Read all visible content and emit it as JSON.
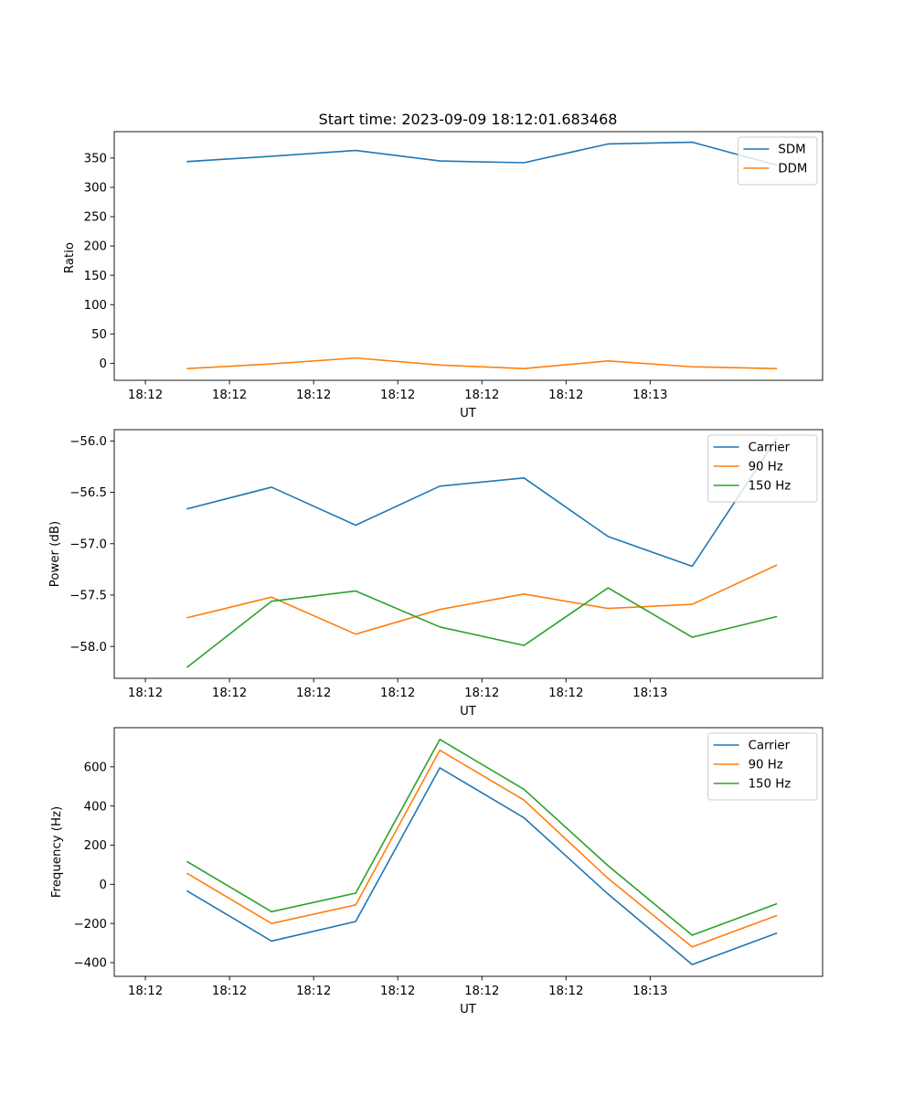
{
  "chart_data": [
    {
      "type": "line",
      "title": "Start time: 2023-09-09 18:12:01.683468",
      "xlabel": "UT",
      "ylabel": "Ratio",
      "x_tick_labels": [
        "18:12",
        "18:12",
        "18:12",
        "18:12",
        "18:12",
        "18:12",
        "18:13"
      ],
      "y_ticks": [
        0,
        50,
        100,
        150,
        200,
        250,
        300,
        350
      ],
      "ylim": [
        -29,
        395
      ],
      "xlim": [
        -0.37,
        8.05
      ],
      "x": [
        0.5,
        1.5,
        2.5,
        3.5,
        4.5,
        5.5,
        6.5,
        7.5
      ],
      "series": [
        {
          "name": "SDM",
          "color": "#1f77b4",
          "values": [
            344,
            353,
            363,
            345,
            342,
            374,
            377,
            338
          ]
        },
        {
          "name": "DDM",
          "color": "#ff7f0e",
          "values": [
            -9,
            -1,
            9,
            -3,
            -9,
            4,
            -6,
            -9
          ]
        }
      ],
      "legend": "top-right"
    },
    {
      "type": "line",
      "title": "",
      "xlabel": "UT",
      "ylabel": "Power (dB)",
      "x_tick_labels": [
        "18:12",
        "18:12",
        "18:12",
        "18:12",
        "18:12",
        "18:12",
        "18:13"
      ],
      "y_ticks": [
        -58.0,
        -57.5,
        -57.0,
        -56.5,
        -56.0
      ],
      "y_tick_labels": [
        "−58.0",
        "−57.5",
        "−57.0",
        "−56.5",
        "−56.0"
      ],
      "ylim": [
        -58.31,
        -55.89
      ],
      "xlim": [
        -0.37,
        8.05
      ],
      "x": [
        0.5,
        1.5,
        2.5,
        3.5,
        4.5,
        5.5,
        6.5,
        7.5
      ],
      "series": [
        {
          "name": "Carrier",
          "color": "#1f77b4",
          "values": [
            -56.66,
            -56.45,
            -56.82,
            -56.44,
            -56.36,
            -56.93,
            -57.22,
            -55.98
          ]
        },
        {
          "name": "90 Hz",
          "color": "#ff7f0e",
          "values": [
            -57.72,
            -57.52,
            -57.88,
            -57.64,
            -57.49,
            -57.63,
            -57.59,
            -57.21
          ]
        },
        {
          "name": "150 Hz",
          "color": "#2ca02c",
          "values": [
            -58.2,
            -57.56,
            -57.46,
            -57.81,
            -57.99,
            -57.43,
            -57.91,
            -57.71
          ]
        }
      ],
      "legend": "top-right"
    },
    {
      "type": "line",
      "title": "",
      "xlabel": "UT",
      "ylabel": "Frequency (Hz)",
      "x_tick_labels": [
        "18:12",
        "18:12",
        "18:12",
        "18:12",
        "18:12",
        "18:12",
        "18:13"
      ],
      "y_ticks": [
        -400,
        -200,
        0,
        200,
        400,
        600
      ],
      "y_tick_labels": [
        "−400",
        "−200",
        "0",
        "200",
        "400",
        "600"
      ],
      "ylim": [
        -470,
        800
      ],
      "xlim": [
        -0.37,
        8.05
      ],
      "x": [
        0.5,
        1.5,
        2.5,
        3.5,
        4.5,
        5.5,
        6.5,
        7.5
      ],
      "series": [
        {
          "name": "Carrier",
          "color": "#1f77b4",
          "values": [
            -35,
            -290,
            -190,
            595,
            340,
            -50,
            -410,
            -250
          ]
        },
        {
          "name": "90 Hz",
          "color": "#ff7f0e",
          "values": [
            55,
            -200,
            -105,
            685,
            430,
            30,
            -320,
            -160
          ]
        },
        {
          "name": "150 Hz",
          "color": "#2ca02c",
          "values": [
            115,
            -140,
            -45,
            740,
            485,
            95,
            -260,
            -100
          ]
        }
      ],
      "legend": "top-right"
    }
  ]
}
